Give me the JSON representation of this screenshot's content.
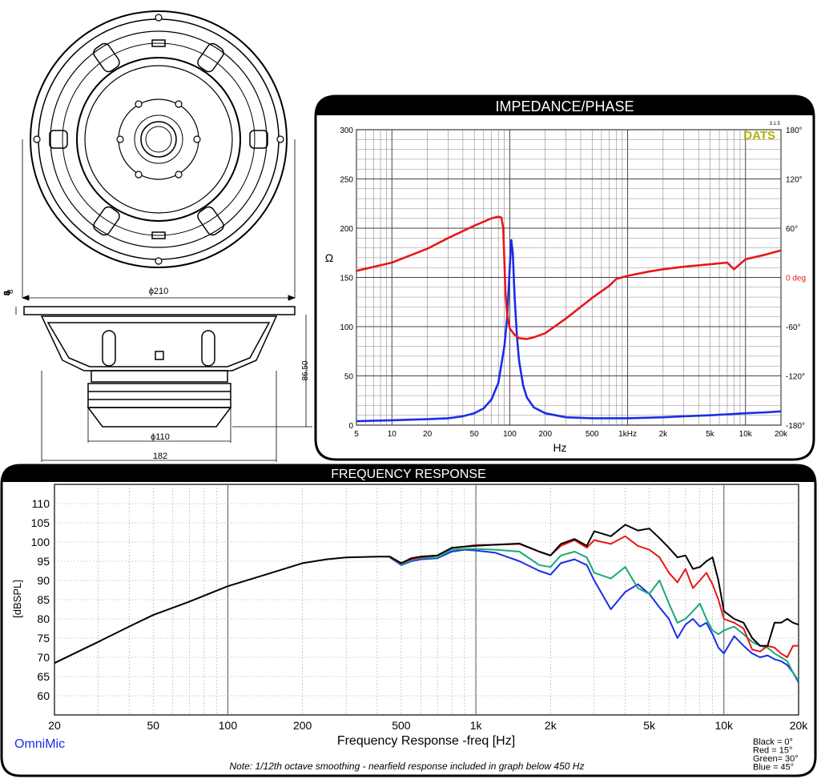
{
  "drawing": {
    "dim_outer_diameter": "ϕ210",
    "dim_magnet_diameter": "ϕ110",
    "dim_basket_width": "182",
    "dim_depth": "86.50",
    "dim_flange": "8"
  },
  "impedance_panel": {
    "title": "IMPEDANCE/PHASE",
    "watermark": "DATS",
    "version": "3.1.5",
    "ylabel_left": "Ω",
    "right_label_deg": "0 deg",
    "xlabel": "Hz"
  },
  "frequency_panel": {
    "title": "FREQUENCY RESPONSE",
    "ylabel": "[dBSPL]",
    "xlabel": "Frequency Response -freq [Hz]",
    "brand": "OmniMic",
    "note": "Note: 1/12th octave smoothing - nearfield response included in graph below 450 Hz"
  },
  "chart_data": [
    {
      "type": "line",
      "title": "IMPEDANCE/PHASE",
      "xlabel": "Hz",
      "ylabel": "Ω",
      "x_scale": "log",
      "xlim": [
        5,
        20000
      ],
      "ylim": [
        0,
        300
      ],
      "y2lim": [
        -180,
        180
      ],
      "grid": true,
      "x_tick_labels": [
        "5",
        "10",
        "20",
        "50",
        "100",
        "200",
        "500",
        "1kHz",
        "2k",
        "5k",
        "10k",
        "20k"
      ],
      "x_tick_values": [
        5,
        10,
        20,
        50,
        100,
        200,
        500,
        1000,
        2000,
        5000,
        10000,
        20000
      ],
      "y_tick_labels": [
        "0",
        "50",
        "100",
        "150",
        "200",
        "250",
        "300"
      ],
      "y2_tick_labels": [
        "-180°",
        "-120°",
        "-60°",
        "0 deg",
        "60°",
        "120°",
        "180°"
      ],
      "y2_tick_values": [
        -180,
        -120,
        -60,
        0,
        60,
        120,
        180
      ],
      "series": [
        {
          "axis": "left",
          "color": "#1a2ee6",
          "x": [
            5,
            10,
            20,
            30,
            40,
            50,
            60,
            70,
            80,
            90,
            95,
            100,
            103,
            106,
            110,
            115,
            120,
            130,
            140,
            160,
            200,
            300,
            500,
            700,
            1000,
            2000,
            3000,
            5000,
            7000,
            10000,
            15000,
            20000
          ],
          "y": [
            4,
            5,
            6,
            7,
            9,
            12,
            17,
            26,
            43,
            80,
            110,
            160,
            188,
            175,
            130,
            90,
            65,
            40,
            28,
            18,
            12,
            8,
            7,
            7,
            7,
            8,
            9,
            10,
            11,
            12,
            13,
            14
          ]
        },
        {
          "axis": "right",
          "color": "#e81818",
          "x": [
            5,
            10,
            20,
            30,
            50,
            70,
            80,
            85,
            88,
            90,
            92,
            95,
            100,
            110,
            120,
            140,
            160,
            200,
            300,
            500,
            700,
            800,
            1000,
            1500,
            2000,
            3000,
            5000,
            7000,
            8000,
            10000,
            15000,
            20000
          ],
          "y": [
            8,
            18,
            35,
            48,
            63,
            72,
            74,
            73,
            60,
            20,
            -20,
            -45,
            -62,
            -70,
            -74,
            -75,
            -73,
            -68,
            -50,
            -25,
            -10,
            -2,
            2,
            7,
            10,
            13,
            16,
            18,
            10,
            22,
            28,
            33
          ]
        }
      ]
    },
    {
      "type": "line",
      "title": "FREQUENCY RESPONSE",
      "xlabel": "Frequency Response -freq [Hz]",
      "ylabel": "[dBSPL]",
      "x_scale": "log",
      "xlim": [
        20,
        20000
      ],
      "ylim": [
        55,
        115
      ],
      "grid": true,
      "x_tick_labels": [
        "20",
        "50",
        "100",
        "200",
        "500",
        "1k",
        "2k",
        "5k",
        "10k",
        "20k"
      ],
      "x_tick_values": [
        20,
        50,
        100,
        200,
        500,
        1000,
        2000,
        5000,
        10000,
        20000
      ],
      "y_tick_labels": [
        "60",
        "65",
        "70",
        "75",
        "80",
        "85",
        "90",
        "95",
        "100",
        "105",
        "110"
      ],
      "y_tick_values": [
        60,
        65,
        70,
        75,
        80,
        85,
        90,
        95,
        100,
        105,
        110
      ],
      "legend": [
        "Black = 0°",
        "Red = 15°",
        "Green= 30°",
        "Blue = 45°"
      ],
      "legend_position": "bottom-right",
      "series": [
        {
          "name": "Black = 0°",
          "color": "#000000",
          "x": [
            20,
            30,
            40,
            50,
            70,
            100,
            150,
            200,
            250,
            300,
            400,
            450,
            500,
            550,
            600,
            700,
            800,
            900,
            1000,
            1200,
            1500,
            1800,
            2000,
            2200,
            2500,
            2800,
            3000,
            3500,
            4000,
            4500,
            5000,
            5500,
            6000,
            6500,
            7000,
            7500,
            8000,
            8500,
            9000,
            9500,
            10000,
            11000,
            12000,
            13000,
            14000,
            15000,
            16000,
            17000,
            18000,
            19000,
            20000
          ],
          "y": [
            68.5,
            74,
            78,
            81,
            84.5,
            88.5,
            92,
            94.5,
            95.5,
            96,
            96.2,
            96.2,
            94.5,
            95.8,
            96.2,
            96.5,
            98.5,
            98.8,
            99,
            99.3,
            99.6,
            97.5,
            96.5,
            99.5,
            100.8,
            99,
            102.8,
            101.5,
            104.5,
            103,
            103.5,
            101,
            98.5,
            96,
            96.5,
            93,
            93.5,
            95,
            96,
            90,
            82,
            80,
            79,
            75,
            73,
            73,
            79,
            79,
            80,
            79,
            78.5
          ]
        },
        {
          "name": "Red = 15°",
          "color": "#e81818",
          "x": [
            450,
            500,
            550,
            600,
            700,
            800,
            900,
            1000,
            1200,
            1500,
            1800,
            2000,
            2200,
            2500,
            2800,
            3000,
            3500,
            4000,
            4500,
            5000,
            5500,
            6000,
            6500,
            7000,
            7500,
            8000,
            8500,
            9000,
            9500,
            10000,
            11000,
            12000,
            13000,
            14000,
            15000,
            16000,
            17000,
            18000,
            19000,
            20000
          ],
          "y": [
            96,
            94.5,
            95.5,
            96,
            96.5,
            98.5,
            98.8,
            99.2,
            99.3,
            99.5,
            97.5,
            96.5,
            99,
            100.5,
            98.5,
            100.5,
            99.5,
            101.5,
            99,
            98,
            96,
            92,
            89.5,
            93,
            88,
            90,
            92,
            89,
            85,
            80,
            79,
            77.5,
            72,
            71.5,
            73,
            72.5,
            71,
            70,
            73,
            73
          ]
        },
        {
          "name": "Green= 30°",
          "color": "#1aa878",
          "x": [
            450,
            500,
            550,
            600,
            700,
            800,
            900,
            1000,
            1200,
            1500,
            1800,
            2000,
            2200,
            2500,
            2800,
            3000,
            3500,
            4000,
            4500,
            5000,
            5500,
            6000,
            6500,
            7000,
            7500,
            8000,
            8500,
            9000,
            9500,
            10000,
            11000,
            12000,
            13000,
            14000,
            15000,
            16000,
            17000,
            18000,
            19000,
            20000
          ],
          "y": [
            96,
            94.2,
            95.2,
            95.8,
            96,
            98,
            98.2,
            98.2,
            98,
            97.5,
            94,
            93.5,
            96.5,
            97.5,
            96,
            92,
            90.5,
            93.5,
            88,
            86.5,
            90,
            84,
            79,
            80,
            82,
            84,
            80,
            77,
            76,
            77,
            78,
            76,
            74,
            73,
            72.5,
            71,
            70,
            69,
            66,
            64
          ]
        },
        {
          "name": "Blue = 45°",
          "color": "#1a2ee6",
          "x": [
            450,
            500,
            550,
            600,
            700,
            800,
            900,
            1000,
            1200,
            1500,
            1800,
            2000,
            2200,
            2500,
            2800,
            3000,
            3500,
            4000,
            4500,
            5000,
            5500,
            6000,
            6500,
            7000,
            7500,
            8000,
            8500,
            9000,
            9500,
            10000,
            11000,
            12000,
            13000,
            14000,
            15000,
            16000,
            17000,
            18000,
            19000,
            20000
          ],
          "y": [
            96,
            94,
            95,
            95.5,
            95.8,
            97.5,
            98,
            97.8,
            97.2,
            95,
            92.5,
            91.5,
            94.5,
            95.5,
            94,
            90,
            82.5,
            87,
            89,
            86.5,
            83,
            80,
            75,
            78.5,
            80,
            78,
            79,
            76,
            72.5,
            71,
            75.5,
            73,
            71,
            70,
            70.5,
            69.5,
            69,
            68,
            66,
            63.5
          ]
        }
      ]
    }
  ]
}
